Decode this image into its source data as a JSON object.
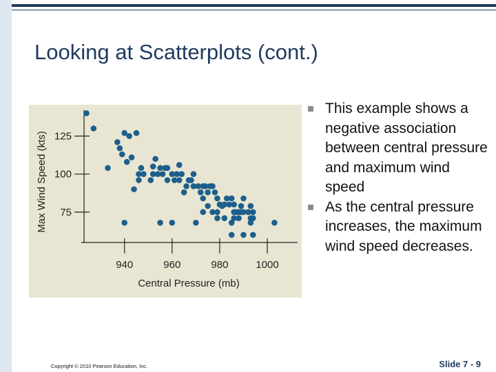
{
  "slide": {
    "title": "Looking at Scatterplots (cont.)",
    "bullets": [
      "This example shows a negative association between central pressure and maximum wind speed",
      "As the central pressure increases, the maximum wind speed decreases."
    ],
    "copyright": "Copyright © 2010 Pearson Education, Inc.",
    "slide_number": "Slide 7 - 9"
  },
  "colors": {
    "accent": "#1f3a5f",
    "point": "#1d5f8c",
    "chart_background": "#e8e6d2"
  },
  "chart_data": {
    "type": "scatter",
    "title": "",
    "xlabel": "Central Pressure (mb)",
    "ylabel": "Max Wind Speed (kts)",
    "xlim": [
      923,
      1011
    ],
    "ylim": [
      55,
      142
    ],
    "x_ticks": [
      940,
      960,
      980,
      1000
    ],
    "x_tick_labels": [
      "940",
      "960",
      "980",
      "1000"
    ],
    "y_ticks": [
      75,
      100,
      125
    ],
    "y_tick_labels": [
      "75",
      "100",
      "125"
    ],
    "grid": false,
    "legend": "none",
    "series": [
      {
        "points": [
          [
            924,
            140
          ],
          [
            927,
            130
          ],
          [
            937,
            121
          ],
          [
            938,
            117
          ],
          [
            939,
            113
          ],
          [
            940,
            127
          ],
          [
            942,
            125
          ],
          [
            943,
            111
          ],
          [
            945,
            127
          ],
          [
            933,
            104
          ],
          [
            941,
            108
          ],
          [
            944,
            90
          ],
          [
            946,
            96
          ],
          [
            946,
            100
          ],
          [
            947,
            104
          ],
          [
            948,
            100
          ],
          [
            951,
            96
          ],
          [
            952,
            100
          ],
          [
            952,
            105
          ],
          [
            953,
            110
          ],
          [
            954,
            100
          ],
          [
            955,
            104
          ],
          [
            956,
            100
          ],
          [
            957,
            104
          ],
          [
            958,
            104
          ],
          [
            958,
            96
          ],
          [
            960,
            100
          ],
          [
            961,
            96
          ],
          [
            962,
            100
          ],
          [
            963,
            96
          ],
          [
            964,
            100
          ],
          [
            963,
            106
          ],
          [
            965,
            88
          ],
          [
            966,
            92
          ],
          [
            967,
            96
          ],
          [
            968,
            96
          ],
          [
            969,
            92
          ],
          [
            969,
            100
          ],
          [
            971,
            92
          ],
          [
            972,
            88
          ],
          [
            973,
            92
          ],
          [
            973,
            84
          ],
          [
            974,
            92
          ],
          [
            975,
            88
          ],
          [
            976,
            92
          ],
          [
            977,
            92
          ],
          [
            978,
            88
          ],
          [
            973,
            75
          ],
          [
            975,
            79
          ],
          [
            977,
            75
          ],
          [
            979,
            75
          ],
          [
            979,
            84
          ],
          [
            980,
            80
          ],
          [
            981,
            79
          ],
          [
            982,
            80
          ],
          [
            983,
            84
          ],
          [
            984,
            80
          ],
          [
            985,
            84
          ],
          [
            986,
            80
          ],
          [
            986,
            75
          ],
          [
            987,
            75
          ],
          [
            988,
            75
          ],
          [
            989,
            75
          ],
          [
            989,
            79
          ],
          [
            990,
            75
          ],
          [
            990,
            84
          ],
          [
            992,
            75
          ],
          [
            993,
            79
          ],
          [
            994,
            75
          ],
          [
            979,
            71
          ],
          [
            982,
            71
          ],
          [
            986,
            71
          ],
          [
            988,
            71
          ],
          [
            993,
            71
          ],
          [
            994,
            71
          ],
          [
            940,
            68
          ],
          [
            955,
            68
          ],
          [
            960,
            68
          ],
          [
            970,
            68
          ],
          [
            985,
            68
          ],
          [
            993,
            68
          ],
          [
            1003,
            68
          ],
          [
            985,
            60
          ],
          [
            990,
            60
          ],
          [
            994,
            60
          ]
        ]
      }
    ]
  }
}
